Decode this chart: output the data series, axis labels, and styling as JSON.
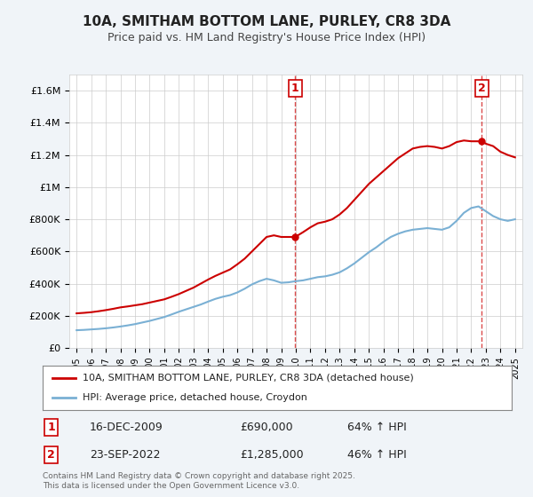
{
  "title": "10A, SMITHAM BOTTOM LANE, PURLEY, CR8 3DA",
  "subtitle": "Price paid vs. HM Land Registry's House Price Index (HPI)",
  "legend_property": "10A, SMITHAM BOTTOM LANE, PURLEY, CR8 3DA (detached house)",
  "legend_hpi": "HPI: Average price, detached house, Croydon",
  "sale1_label": "1",
  "sale1_date": "16-DEC-2009",
  "sale1_price": "£690,000",
  "sale1_hpi": "64% ↑ HPI",
  "sale1_year": 2009.96,
  "sale1_value": 690000,
  "sale2_label": "2",
  "sale2_date": "23-SEP-2022",
  "sale2_price": "£1,285,000",
  "sale2_hpi": "46% ↑ HPI",
  "sale2_year": 2022.73,
  "sale2_value": 1285000,
  "footnote": "Contains HM Land Registry data © Crown copyright and database right 2025.\nThis data is licensed under the Open Government Licence v3.0.",
  "line_color_property": "#cc0000",
  "line_color_hpi": "#7ab0d4",
  "marker_color": "#cc0000",
  "ylim": [
    0,
    1700000
  ],
  "xlim": [
    1994.5,
    2025.5
  ],
  "background_color": "#f0f4f8",
  "plot_background": "#ffffff",
  "grid_color": "#cccccc",
  "yticks": [
    0,
    200000,
    400000,
    600000,
    800000,
    1000000,
    1200000,
    1400000,
    1600000
  ],
  "ytick_labels": [
    "£0",
    "£200K",
    "£400K",
    "£600K",
    "£800K",
    "£1M",
    "£1.2M",
    "£1.4M",
    "£1.6M"
  ],
  "xticks": [
    1995,
    1996,
    1997,
    1998,
    1999,
    2000,
    2001,
    2002,
    2003,
    2004,
    2005,
    2006,
    2007,
    2008,
    2009,
    2010,
    2011,
    2012,
    2013,
    2014,
    2015,
    2016,
    2017,
    2018,
    2019,
    2020,
    2021,
    2022,
    2023,
    2024,
    2025
  ],
  "property_x": [
    1995.0,
    1995.5,
    1996.0,
    1996.5,
    1997.0,
    1997.5,
    1998.0,
    1998.5,
    1999.0,
    1999.5,
    2000.0,
    2000.5,
    2001.0,
    2001.5,
    2002.0,
    2002.5,
    2003.0,
    2003.5,
    2004.0,
    2004.5,
    2005.0,
    2005.5,
    2006.0,
    2006.5,
    2007.0,
    2007.5,
    2008.0,
    2008.5,
    2009.0,
    2009.5,
    2009.96,
    2010.5,
    2011.0,
    2011.5,
    2012.0,
    2012.5,
    2013.0,
    2013.5,
    2014.0,
    2014.5,
    2015.0,
    2015.5,
    2016.0,
    2016.5,
    2017.0,
    2017.5,
    2018.0,
    2018.5,
    2019.0,
    2019.5,
    2020.0,
    2020.5,
    2021.0,
    2021.5,
    2022.0,
    2022.5,
    2022.73,
    2023.0,
    2023.5,
    2024.0,
    2024.5,
    2025.0
  ],
  "property_y": [
    215000,
    218000,
    222000,
    228000,
    235000,
    243000,
    252000,
    258000,
    265000,
    272000,
    282000,
    292000,
    302000,
    318000,
    335000,
    355000,
    375000,
    400000,
    425000,
    448000,
    468000,
    488000,
    520000,
    555000,
    600000,
    645000,
    690000,
    700000,
    690000,
    690000,
    690000,
    720000,
    750000,
    775000,
    785000,
    800000,
    830000,
    870000,
    920000,
    970000,
    1020000,
    1060000,
    1100000,
    1140000,
    1180000,
    1210000,
    1240000,
    1250000,
    1255000,
    1250000,
    1240000,
    1255000,
    1280000,
    1290000,
    1285000,
    1285000,
    1285000,
    1270000,
    1255000,
    1220000,
    1200000,
    1185000
  ],
  "hpi_x": [
    1995.0,
    1995.5,
    1996.0,
    1996.5,
    1997.0,
    1997.5,
    1998.0,
    1998.5,
    1999.0,
    1999.5,
    2000.0,
    2000.5,
    2001.0,
    2001.5,
    2002.0,
    2002.5,
    2003.0,
    2003.5,
    2004.0,
    2004.5,
    2005.0,
    2005.5,
    2006.0,
    2006.5,
    2007.0,
    2007.5,
    2008.0,
    2008.5,
    2009.0,
    2009.5,
    2010.0,
    2010.5,
    2011.0,
    2011.5,
    2012.0,
    2012.5,
    2013.0,
    2013.5,
    2014.0,
    2014.5,
    2015.0,
    2015.5,
    2016.0,
    2016.5,
    2017.0,
    2017.5,
    2018.0,
    2018.5,
    2019.0,
    2019.5,
    2020.0,
    2020.5,
    2021.0,
    2021.5,
    2022.0,
    2022.5,
    2023.0,
    2023.5,
    2024.0,
    2024.5,
    2025.0
  ],
  "hpi_y": [
    110000,
    112000,
    115000,
    118000,
    122000,
    127000,
    133000,
    140000,
    148000,
    158000,
    168000,
    180000,
    192000,
    208000,
    225000,
    240000,
    255000,
    270000,
    288000,
    305000,
    318000,
    328000,
    345000,
    368000,
    395000,
    415000,
    430000,
    420000,
    405000,
    408000,
    415000,
    420000,
    430000,
    440000,
    445000,
    455000,
    470000,
    495000,
    525000,
    560000,
    595000,
    625000,
    660000,
    690000,
    710000,
    725000,
    735000,
    740000,
    745000,
    740000,
    735000,
    750000,
    790000,
    840000,
    870000,
    880000,
    850000,
    820000,
    800000,
    790000,
    800000
  ]
}
